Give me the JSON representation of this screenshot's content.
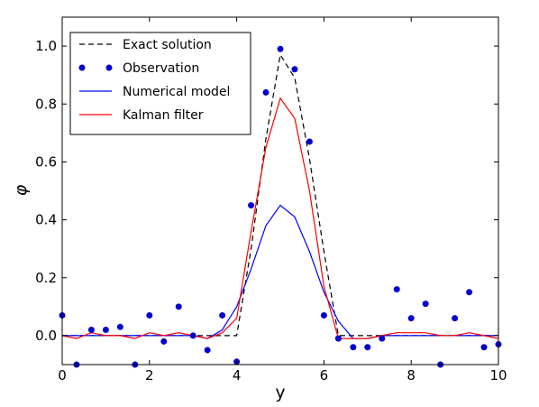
{
  "chart_data": {
    "type": "line",
    "xlabel": "y",
    "ylabel": "φ",
    "xlim": [
      0,
      10
    ],
    "ylim": [
      -0.1,
      1.1
    ],
    "xticks": [
      0,
      2,
      4,
      6,
      8,
      10
    ],
    "xtick_labels": [
      "0",
      "2",
      "4",
      "6",
      "8",
      "10"
    ],
    "yticks": [
      0.0,
      0.2,
      0.4,
      0.6,
      0.8,
      1.0
    ],
    "ytick_labels": [
      "0.0",
      "0.2",
      "0.4",
      "0.6",
      "0.8",
      "1.0"
    ],
    "grid": false,
    "legend_position": "top-left",
    "series": [
      {
        "name": "Exact solution",
        "style": "dashed",
        "color": "#000000",
        "x": [
          0,
          3.67,
          4.0,
          4.33,
          4.67,
          5.0,
          5.33,
          5.67,
          6.0,
          6.33,
          10
        ],
        "y": [
          0,
          0,
          0,
          0.3,
          0.68,
          0.97,
          0.89,
          0.61,
          0.29,
          0.0,
          0
        ]
      },
      {
        "name": "Observation",
        "style": "points",
        "color": "#0000cc",
        "x": [
          0.0,
          0.33,
          0.67,
          1.0,
          1.33,
          1.67,
          2.0,
          2.33,
          2.67,
          3.0,
          3.33,
          3.67,
          4.0,
          4.33,
          4.67,
          5.0,
          5.33,
          5.67,
          6.0,
          6.33,
          6.67,
          7.0,
          7.33,
          7.67,
          8.0,
          8.33,
          8.67,
          9.0,
          9.33,
          9.67,
          10.0
        ],
        "y": [
          0.07,
          -0.1,
          0.02,
          0.02,
          0.03,
          -0.1,
          0.07,
          -0.02,
          0.1,
          0.0,
          -0.05,
          0.07,
          -0.09,
          0.45,
          0.84,
          0.99,
          0.92,
          0.67,
          0.07,
          -0.01,
          -0.04,
          -0.04,
          -0.01,
          0.16,
          0.06,
          0.11,
          -0.1,
          0.06,
          0.15,
          -0.04,
          -0.03
        ]
      },
      {
        "name": "Numerical model",
        "style": "solid",
        "color": "#0000ff",
        "x": [
          0.0,
          0.33,
          0.67,
          1.0,
          1.33,
          1.67,
          2.0,
          2.33,
          2.67,
          3.0,
          3.33,
          3.67,
          4.0,
          4.33,
          4.67,
          5.0,
          5.33,
          5.67,
          6.0,
          6.33,
          6.67,
          7.0,
          7.33,
          7.67,
          8.0,
          8.33,
          8.67,
          9.0,
          9.33,
          9.67,
          10.0
        ],
        "y": [
          0,
          0,
          0,
          0,
          0,
          0,
          0,
          0,
          0,
          0,
          -0.01,
          0.02,
          0.1,
          0.23,
          0.38,
          0.45,
          0.41,
          0.29,
          0.15,
          0.05,
          -0.01,
          -0.01,
          0,
          0,
          0,
          0,
          0,
          0,
          0,
          0,
          0
        ]
      },
      {
        "name": "Kalman filter",
        "style": "solid",
        "color": "#ff0000",
        "x": [
          0.0,
          0.33,
          0.67,
          1.0,
          1.33,
          1.67,
          2.0,
          2.33,
          2.67,
          3.0,
          3.33,
          3.67,
          4.0,
          4.33,
          4.67,
          5.0,
          5.33,
          5.67,
          6.0,
          6.33,
          6.67,
          7.0,
          7.33,
          7.67,
          8.0,
          8.33,
          8.67,
          9.0,
          9.33,
          9.67,
          10.0
        ],
        "y": [
          0.0,
          -0.01,
          0.01,
          0.0,
          0.0,
          -0.01,
          0.01,
          0.0,
          0.01,
          0.0,
          -0.01,
          0.01,
          0.06,
          0.36,
          0.65,
          0.82,
          0.75,
          0.5,
          0.17,
          -0.01,
          -0.01,
          -0.01,
          0.0,
          0.01,
          0.01,
          0.01,
          0.0,
          0.0,
          0.01,
          0.0,
          -0.01
        ]
      }
    ]
  }
}
